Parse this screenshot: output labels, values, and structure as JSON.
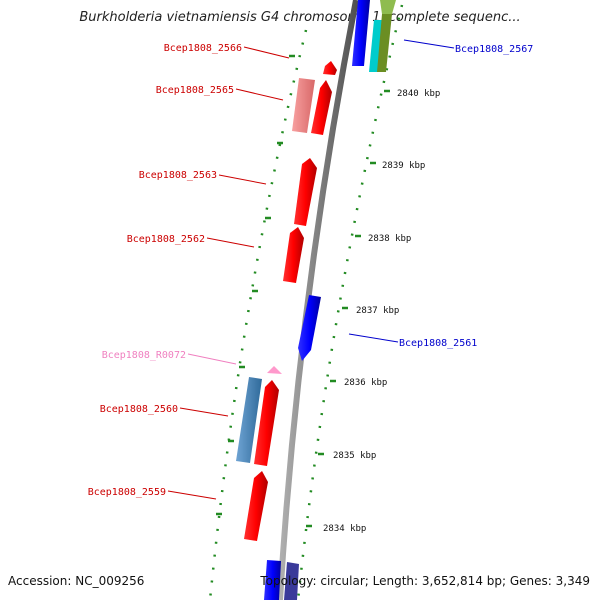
{
  "title": "Burkholderia vietnamiensis G4 chromosome 1, complete sequenc...",
  "footer": {
    "accession": "Accession: NC_009256",
    "topology": "Topology: circular; Length: 3,652,814 bp; Genes: 3,349"
  },
  "scale_labels": [
    "2840 kbp",
    "2839 kbp",
    "2838 kbp",
    "2837 kbp",
    "2836 kbp",
    "2835 kbp",
    "2834 kbp"
  ],
  "genes": [
    {
      "label": "Bcep1808_2566",
      "color": "#cc0000",
      "side": "left"
    },
    {
      "label": "Bcep1808_2565",
      "color": "#cc0000",
      "side": "left"
    },
    {
      "label": "Bcep1808_2563",
      "color": "#cc0000",
      "side": "left"
    },
    {
      "label": "Bcep1808_2562",
      "color": "#cc0000",
      "side": "left"
    },
    {
      "label": "Bcep1808_R0072",
      "color": "#f080c0",
      "side": "left"
    },
    {
      "label": "Bcep1808_2560",
      "color": "#cc0000",
      "side": "left"
    },
    {
      "label": "Bcep1808_2559",
      "color": "#cc0000",
      "side": "left"
    },
    {
      "label": "Bcep1808_2567",
      "color": "#0000cc",
      "side": "right"
    },
    {
      "label": "Bcep1808_2561",
      "color": "#0000cc",
      "side": "right"
    }
  ],
  "colors": {
    "forward_cds": "#ff0000",
    "reverse_cds": "#0000ff",
    "rna": "#ff99cc",
    "cog_steelblue": "#4682b4",
    "cog_pink": "#f08080",
    "cog_cyan": "#00cccc",
    "cog_olive": "#6b8e23",
    "backbone": "#808080",
    "tick_dots": "#228b22"
  }
}
